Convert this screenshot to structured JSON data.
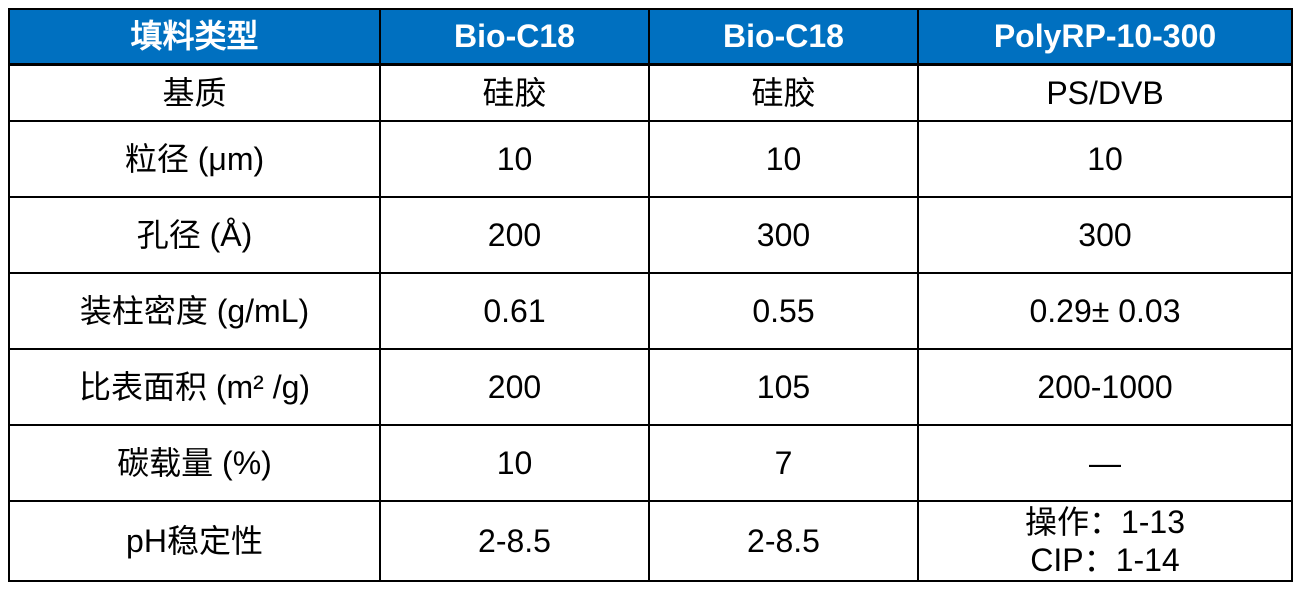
{
  "table": {
    "header": {
      "cells": [
        "填料类型",
        "Bio-C18",
        "Bio-C18",
        "PolyRP-10-300"
      ]
    },
    "rows": [
      {
        "label": "基质",
        "values": [
          "硅胶",
          "硅胶",
          "PS/DVB"
        ]
      },
      {
        "label": "粒径 (μm)",
        "values": [
          "10",
          "10",
          "10"
        ]
      },
      {
        "label": "孔径 (Å)",
        "values": [
          "200",
          "300",
          "300"
        ]
      },
      {
        "label": "装柱密度 (g/mL)",
        "values": [
          "0.61",
          "0.55",
          "0.29± 0.03"
        ]
      },
      {
        "label": "比表面积 (m² /g)",
        "values": [
          "200",
          "105",
          "200-1000"
        ]
      },
      {
        "label": "碳载量 (%)",
        "values": [
          "10",
          "7",
          "—"
        ]
      },
      {
        "label": "pH稳定性",
        "values": [
          "2-8.5",
          "2-8.5",
          "操作：1-13\nCIP：1-14"
        ]
      }
    ],
    "colors": {
      "header_bg": "#0070C0",
      "header_text": "#FFFFFF",
      "body_text": "#000000",
      "border": "#000000"
    }
  }
}
